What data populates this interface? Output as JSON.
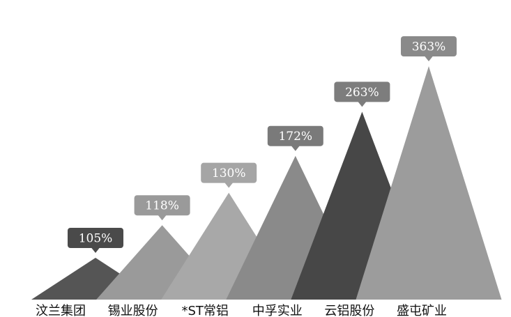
{
  "chart_data": {
    "type": "bar",
    "bar_shape": "triangle",
    "title": "",
    "xlabel": "",
    "ylabel": "",
    "grid": false,
    "legend": "none",
    "categories": [
      "汶兰集团",
      "锡业股份",
      "*ST常铝",
      "中孚实业",
      "云铝股份",
      "盛屯矿业"
    ],
    "values": [
      105,
      118,
      130,
      172,
      263,
      363
    ],
    "value_labels": [
      "105%",
      "118%",
      "130%",
      "172%",
      "263%",
      "363%"
    ],
    "colors": {
      "bars": [
        "#555555",
        "#9a9a9a",
        "#a8a8a8",
        "#8a8a8a",
        "#474747",
        "#9c9c9c"
      ],
      "callouts": [
        "#4a4a4a",
        "#9a9a9a",
        "#a5a5a5",
        "#7a7a7a",
        "#7d7d7d",
        "#8a8a8a"
      ],
      "label_text": "#ffffff",
      "category_text": "#111111"
    }
  }
}
